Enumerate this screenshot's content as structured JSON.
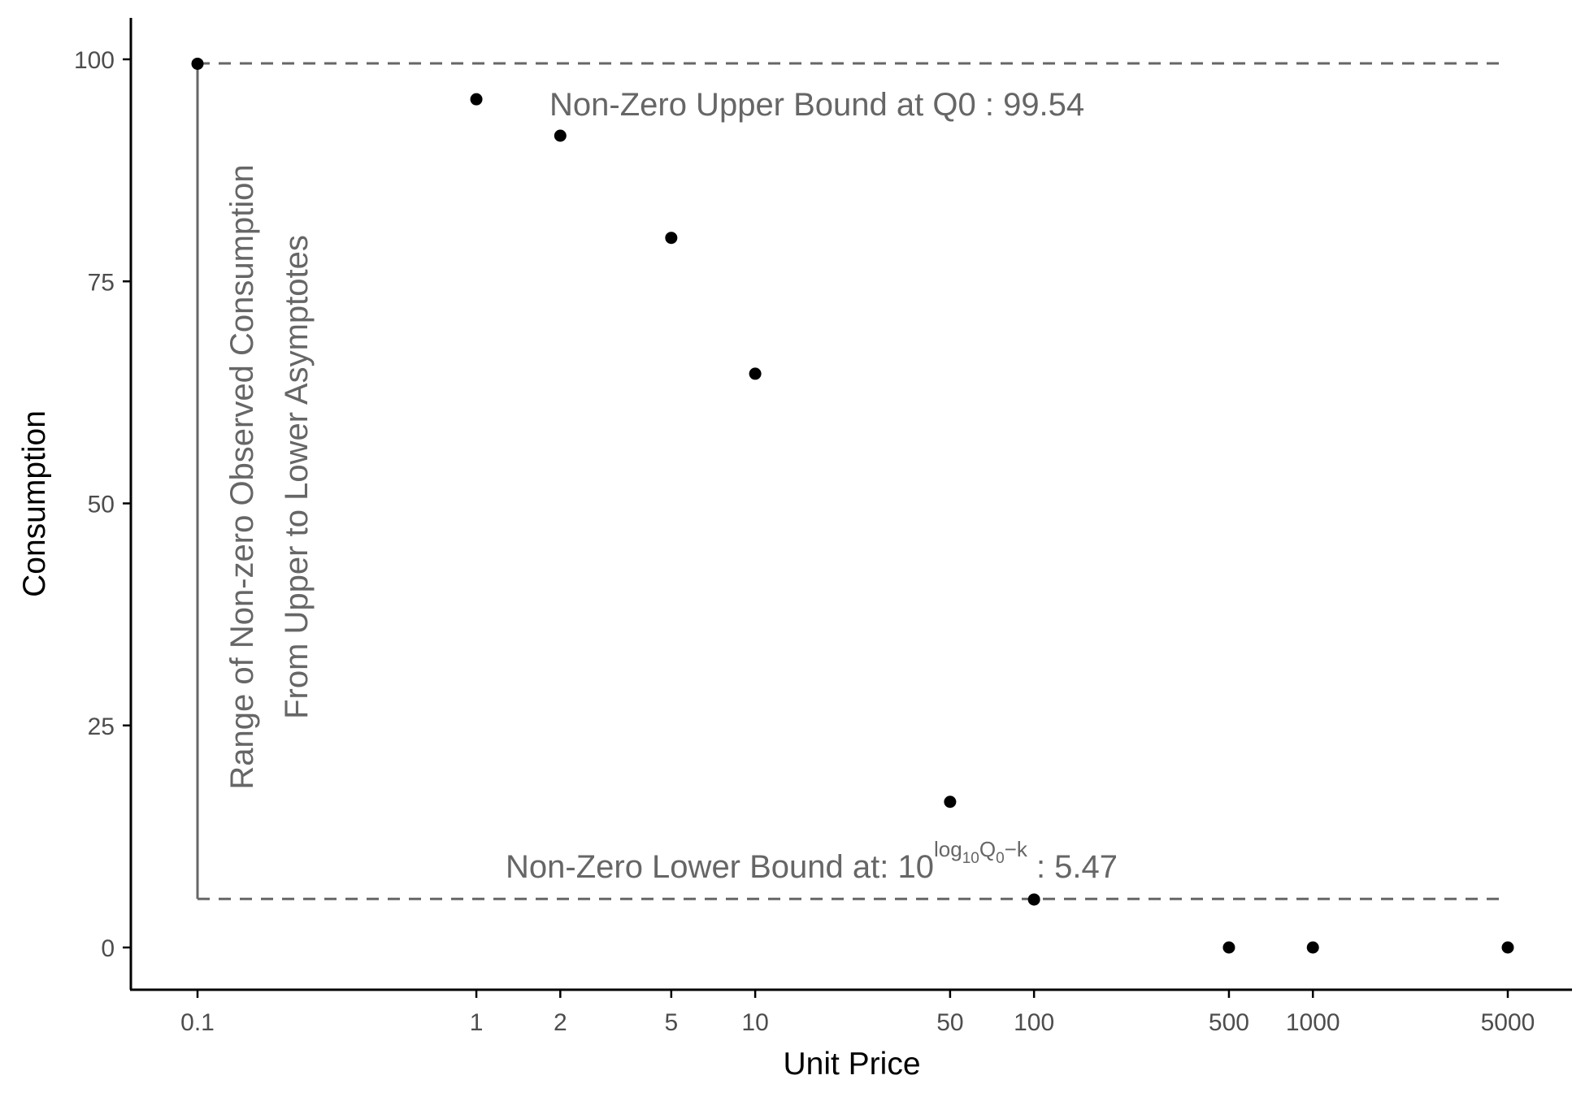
{
  "chart_data": {
    "type": "scatter",
    "title": "",
    "xlabel": "Unit Price",
    "ylabel": "Consumption",
    "x_scale": "log10",
    "xlim": [
      0.07,
      8000
    ],
    "ylim": [
      -5,
      105
    ],
    "x_ticks": [
      0.1,
      1,
      2,
      5,
      10,
      50,
      100,
      500,
      1000,
      5000
    ],
    "x_tick_labels": [
      "0.1",
      "1",
      "2",
      "5",
      "10",
      "50",
      "100",
      "500",
      "1000",
      "5000"
    ],
    "y_ticks": [
      0,
      25,
      50,
      75,
      100
    ],
    "y_tick_labels": [
      "0",
      "25",
      "50",
      "75",
      "100"
    ],
    "grid": false,
    "points": [
      {
        "x": 0.1,
        "y": 99.5
      },
      {
        "x": 1,
        "y": 95.5
      },
      {
        "x": 2,
        "y": 91.4
      },
      {
        "x": 5,
        "y": 79.9
      },
      {
        "x": 10,
        "y": 64.6
      },
      {
        "x": 50,
        "y": 16.4
      },
      {
        "x": 100,
        "y": 5.4
      },
      {
        "x": 500,
        "y": 0
      },
      {
        "x": 1000,
        "y": 0
      },
      {
        "x": 5000,
        "y": 0
      }
    ],
    "upper_bound": 99.54,
    "lower_bound": 5.47,
    "annotations": {
      "upper_label": "Non-Zero Upper Bound at Q0 :  99.54",
      "lower_label_prefix": "Non-Zero Lower Bound at: 10",
      "lower_label_exponent_main": "log",
      "lower_label_exponent_sub": "10",
      "lower_label_exponent_q": "Q",
      "lower_label_exponent_q_sub": "0",
      "lower_label_exponent_tail": "−k",
      "lower_label_suffix": " : 5.47",
      "range_label_line1": "Range of Non-zero Observed Consumption",
      "range_label_line2": "From Upper to Lower Asymptotes"
    },
    "colors": {
      "points": "#000000",
      "reference_lines": "#666666",
      "axis": "#000000",
      "annotation_text": "#666666"
    }
  }
}
